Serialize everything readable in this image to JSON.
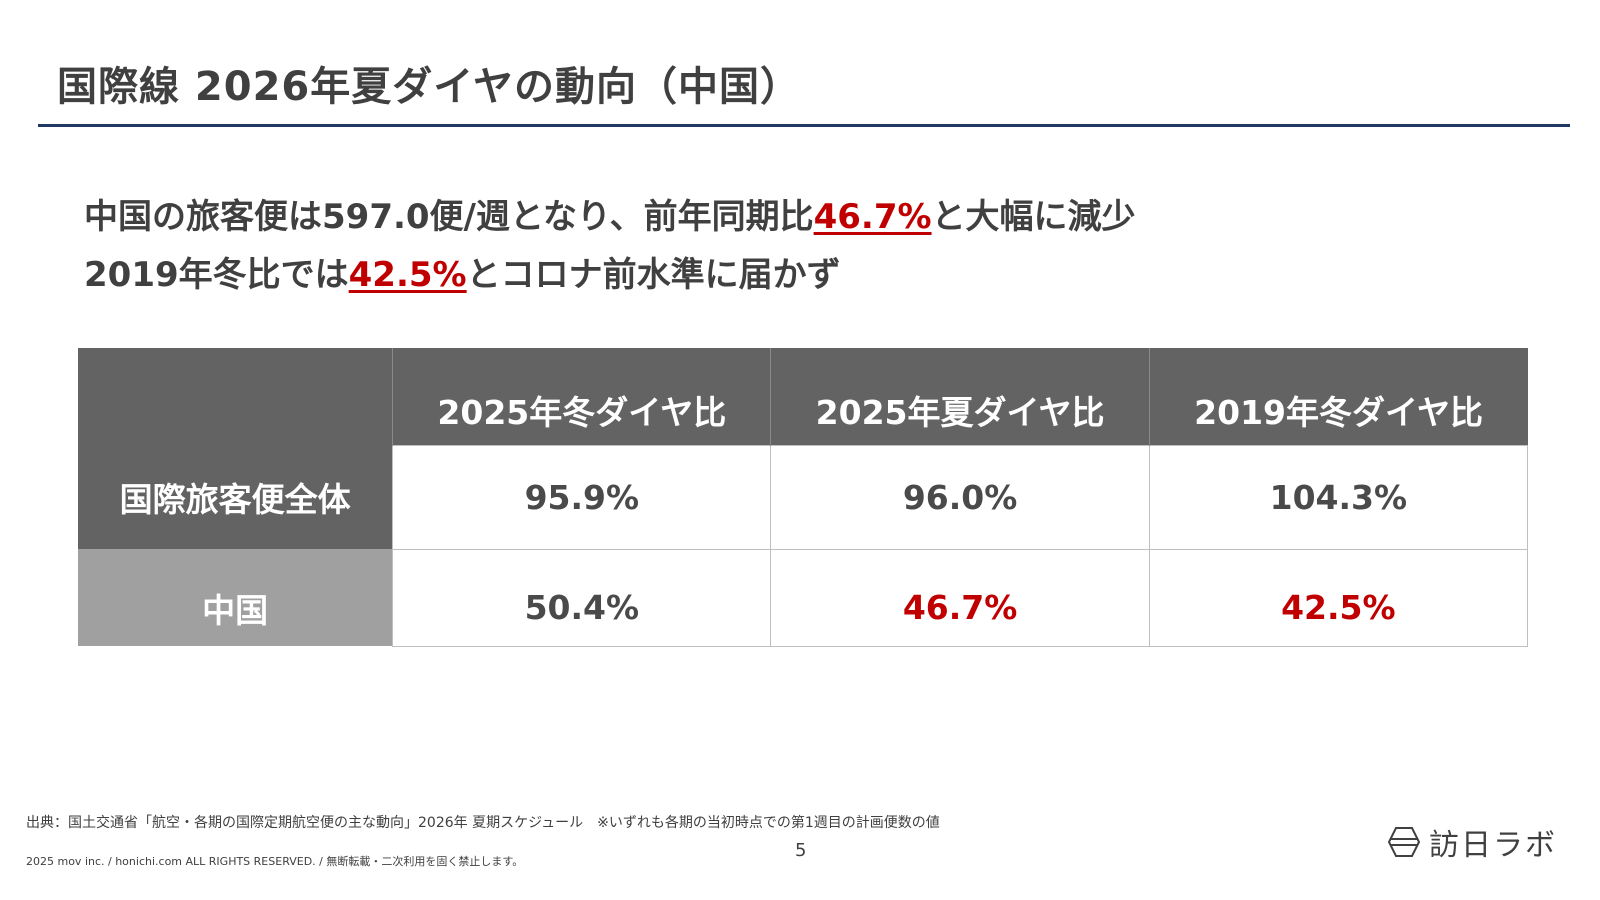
{
  "title": "国際線 2026年夏ダイヤの動向（中国）",
  "summary": {
    "line1_pre": "中国の旅客便は597.0便/週となり、前年同期比",
    "line1_highlight": "46.7%",
    "line1_post": "と大幅に減少",
    "line2_pre": "2019年冬比では",
    "line2_highlight": "42.5%",
    "line2_post": "とコロナ前水準に届かず"
  },
  "table": {
    "headers": [
      "",
      "2025年冬ダイヤ比",
      "2025年夏ダイヤ比",
      "2019年冬ダイヤ比"
    ],
    "rows": [
      {
        "label": "国際旅客便全体",
        "values": [
          "95.9%",
          "96.0%",
          "104.3%"
        ]
      },
      {
        "label": "中国",
        "values": [
          "50.4%",
          "46.7%",
          "42.5%"
        ]
      }
    ]
  },
  "colors": {
    "highlight": "#c00000",
    "header_bg": "#636363",
    "row2_label_bg": "#a0a0a0",
    "title_rule": "#1f3864"
  },
  "footer": {
    "source": "出典：国土交通省「航空・各期の国際定期航空便の主な動向」2026年 夏期スケジュール　※いずれも各期の当初時点での第1週目の計画便数の値",
    "copyright": "2025 mov inc. / honichi.com ALL RIGHTS RESERVED. / 無断転載・二次利用を固く禁止します。",
    "page_number": "5",
    "logo_text": "訪日ラボ",
    "logo_icon": "hexagon-logo-icon"
  }
}
